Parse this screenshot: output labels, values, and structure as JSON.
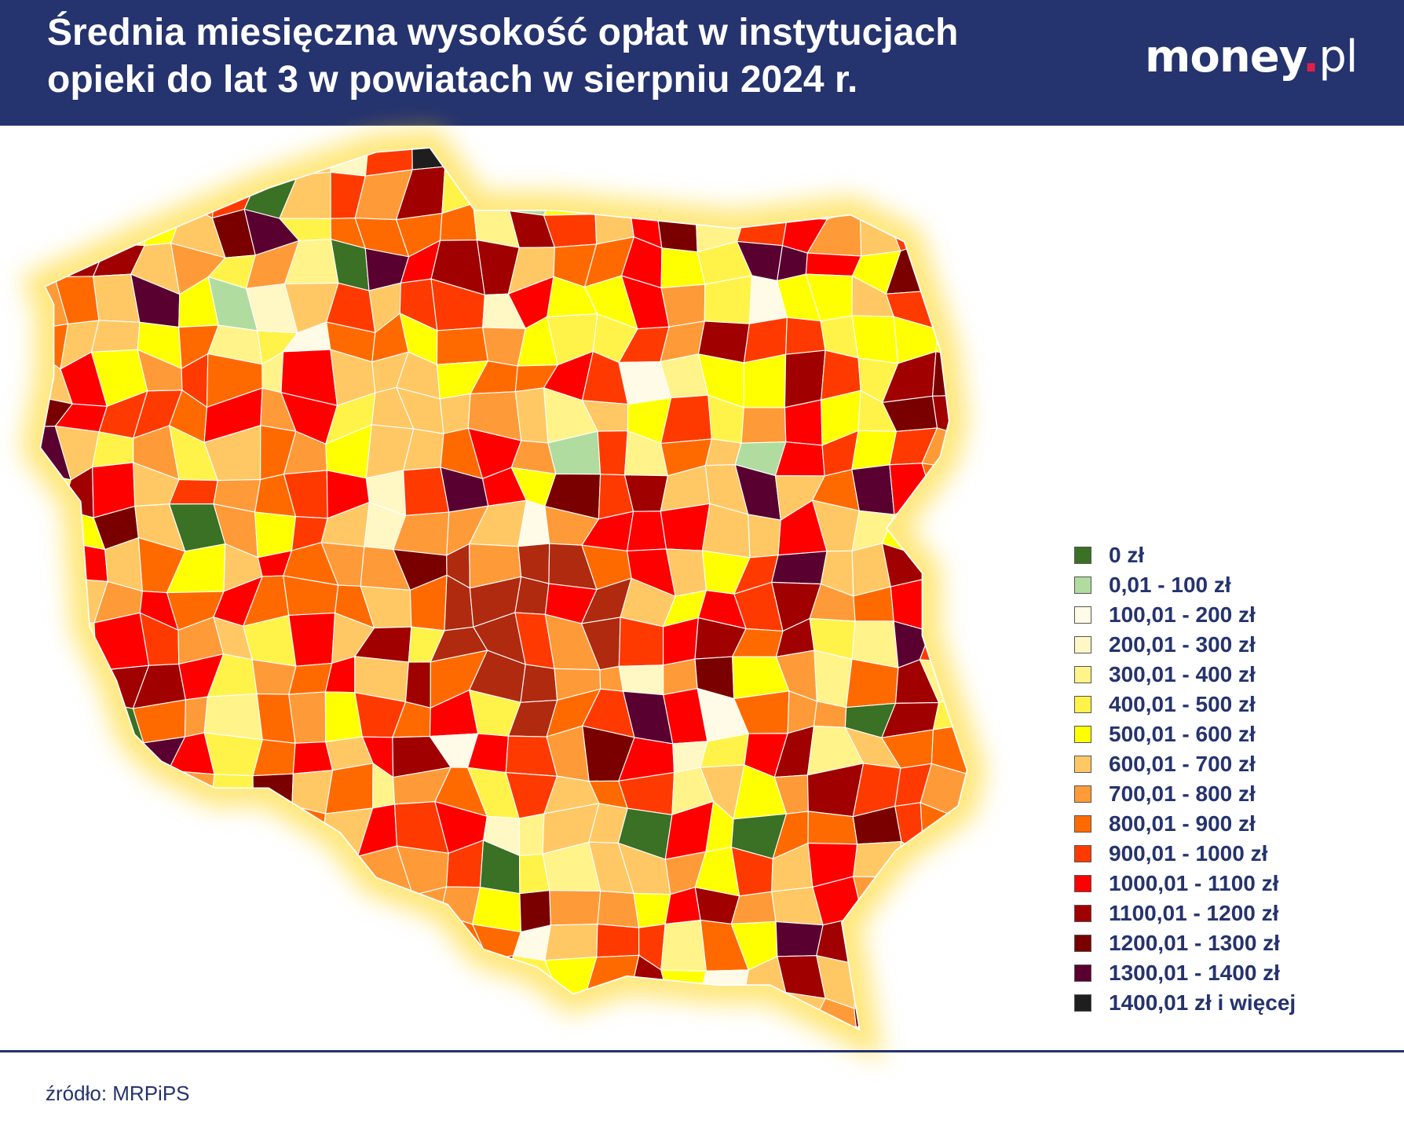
{
  "header": {
    "title": "Średnia miesięczna wysokość opłat w instytucjach opieki do lat 3 w powiatach w sierpniu 2024 r.",
    "logo": {
      "main": "money",
      "dot": ".",
      "suffix": "pl"
    }
  },
  "legend": {
    "items": [
      {
        "label": "0 zł",
        "color": "#3a7124"
      },
      {
        "label": "0,01 - 100 zł",
        "color": "#b0dca0"
      },
      {
        "label": "100,01 - 200 zł",
        "color": "#fffbe6"
      },
      {
        "label": "200,01 - 300 zł",
        "color": "#fff7c4"
      },
      {
        "label": "300,01 - 400 zł",
        "color": "#fff38a"
      },
      {
        "label": "400,01 - 500 zł",
        "color": "#fff34a"
      },
      {
        "label": "500,01 - 600 zł",
        "color": "#ffff00"
      },
      {
        "label": "600,01 - 700 zł",
        "color": "#ffc864"
      },
      {
        "label": "700,01 - 800 zł",
        "color": "#ff9a38"
      },
      {
        "label": "800,01 - 900 zł",
        "color": "#ff6a00"
      },
      {
        "label": "900,01 - 1000 zł",
        "color": "#ff3a00"
      },
      {
        "label": "1000,01 - 1100 zł",
        "color": "#ff0000"
      },
      {
        "label": "1100,01 - 1200 zł",
        "color": "#a00000"
      },
      {
        "label": "1200,01 - 1300 zł",
        "color": "#7a0000"
      },
      {
        "label": "1300,01 - 1400 zł",
        "color": "#5a0030"
      },
      {
        "label": "1400,01 zł i więcej",
        "color": "#1e1e1e"
      }
    ]
  },
  "footer": {
    "source": "źródło: MRPiPS"
  }
}
